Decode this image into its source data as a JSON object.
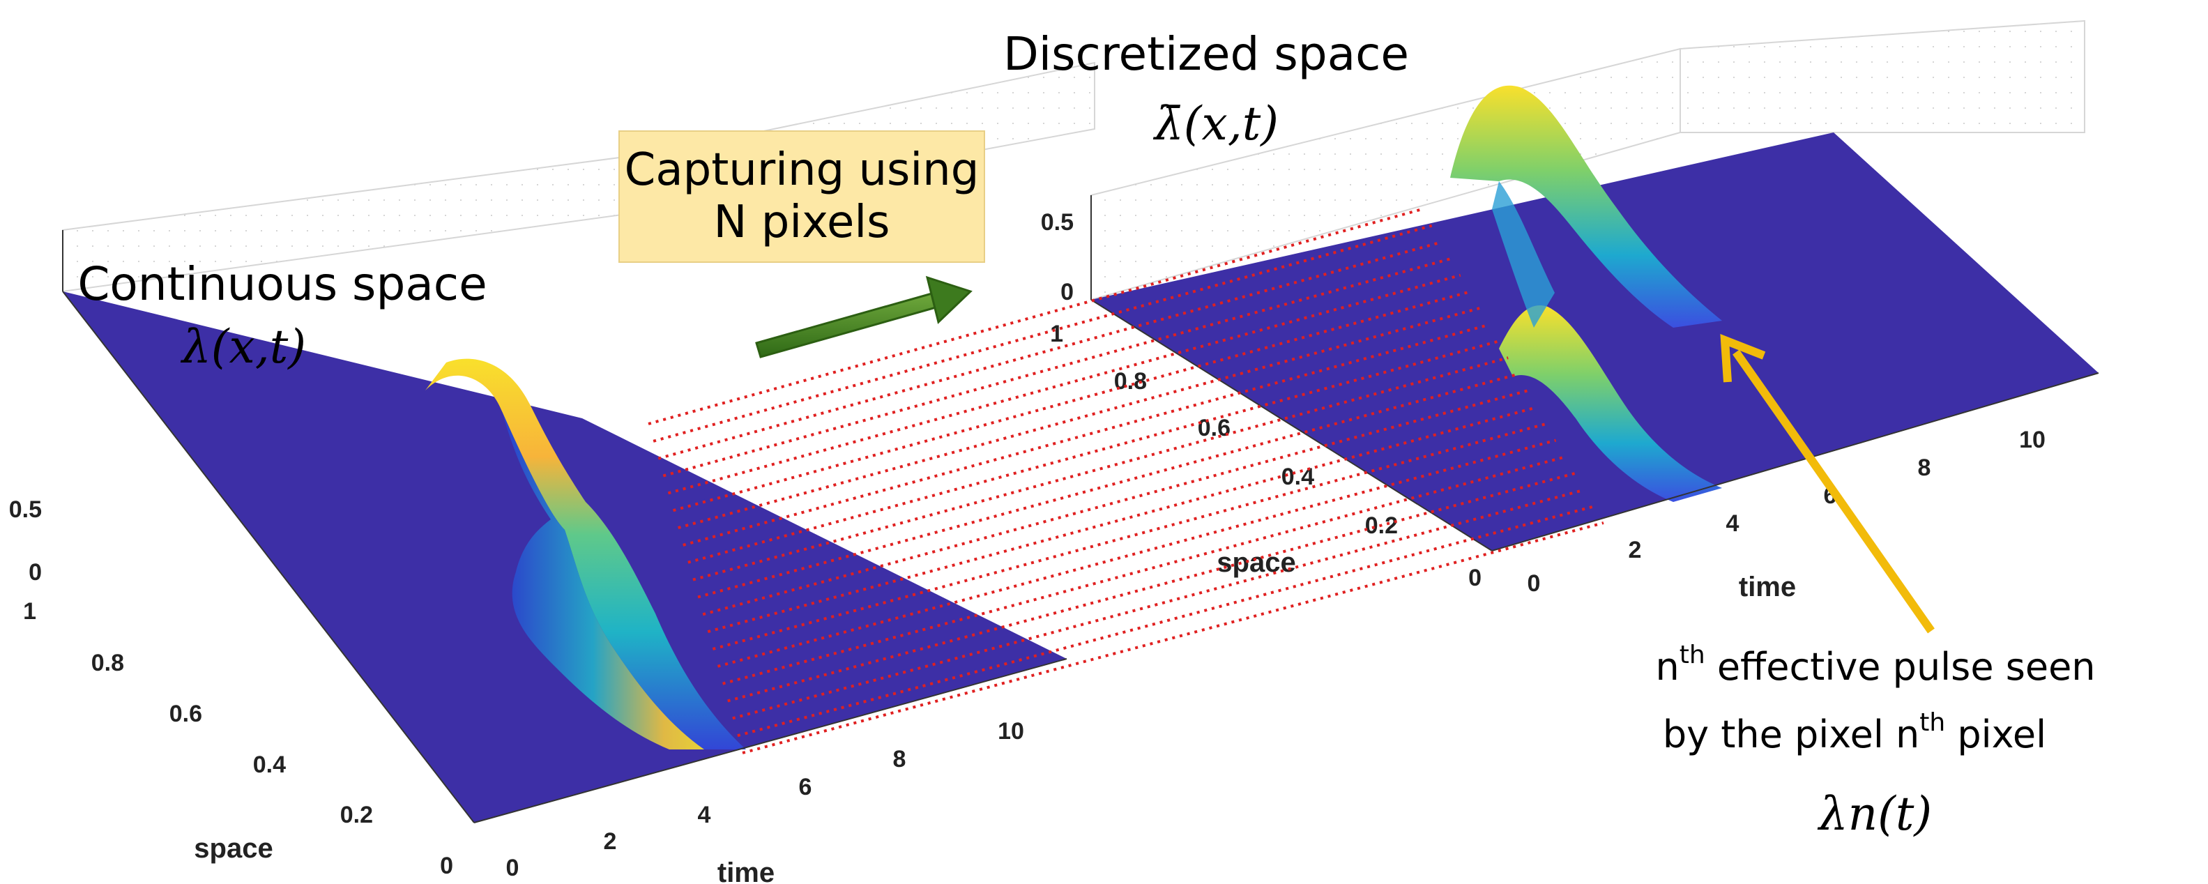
{
  "left_plot": {
    "title": "Continuous space",
    "formula": "λ(x,t)",
    "z_ticks": [
      "0.5",
      "0"
    ],
    "space_ticks": [
      "1",
      "0.8",
      "0.6",
      "0.4",
      "0.2",
      "0"
    ],
    "time_ticks": [
      "0",
      "2",
      "4",
      "6",
      "8",
      "10"
    ],
    "space_label": "space",
    "time_label": "time"
  },
  "right_plot": {
    "title": "Discretized space",
    "formula": "λ̄(x,t)",
    "z_ticks": [
      "0.5",
      "0"
    ],
    "space_ticks": [
      "1",
      "0.8",
      "0.6",
      "0.4",
      "0.2",
      "0"
    ],
    "time_ticks": [
      "0",
      "2",
      "4",
      "6",
      "8",
      "10"
    ],
    "space_label": "space",
    "time_label": "time"
  },
  "capture_box": {
    "line1": "Capturing using",
    "line2": "N pixels"
  },
  "callout": {
    "line1_prefix": "n",
    "line1_sup": "th",
    "line1_rest": " effective pulse seen",
    "line2_prefix": "by the pixel n",
    "line2_sup": "th",
    "line2_rest": " pixel",
    "formula": "λn(t)"
  },
  "colors": {
    "floor": "#3d2fa6",
    "surface_low": "#2f57e6",
    "surface_mid": "#1fb8b4",
    "surface_high": "#f9dd2a",
    "dotted_lines": "#e02020",
    "box_fill": "#fde8a6",
    "green_arrow": "#3d7a1e",
    "yellow_arrow": "#f2bb0a"
  }
}
